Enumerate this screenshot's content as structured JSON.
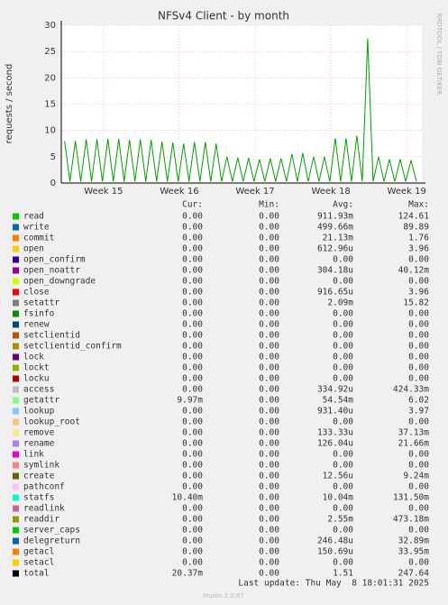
{
  "chart_data": {
    "type": "line",
    "title": "NFSv4 Client - by month",
    "ylabel": "requests / second",
    "watermark": "RRDTOOL / TOBI OETIKER",
    "xlim": [
      0,
      33.3
    ],
    "xticks": [
      {
        "value": 3.9,
        "label": "Week 15"
      },
      {
        "value": 10.9,
        "label": "Week 16"
      },
      {
        "value": 17.9,
        "label": "Week 17"
      },
      {
        "value": 24.9,
        "label": "Week 18"
      },
      {
        "value": 31.9,
        "label": "Week 19"
      }
    ],
    "ylim": [
      0,
      30
    ],
    "yticks": [
      0,
      5,
      10,
      15,
      20,
      25,
      30
    ],
    "grid": true,
    "series": [
      {
        "color": "#00a000",
        "x": [
          0.3,
          0.8,
          1.3,
          1.8,
          2.3,
          2.8,
          3.3,
          3.8,
          4.3,
          4.8,
          5.3,
          5.8,
          6.3,
          6.8,
          7.3,
          7.8,
          8.3,
          8.8,
          9.3,
          9.8,
          10.3,
          10.8,
          11.3,
          11.8,
          12.3,
          12.8,
          13.3,
          13.8,
          14.3,
          14.8,
          15.3,
          15.8,
          16.3,
          16.8,
          17.3,
          17.8,
          18.3,
          18.8,
          19.3,
          19.8,
          20.3,
          20.8,
          21.3,
          21.8,
          22.3,
          22.8,
          23.3,
          23.8,
          24.3,
          24.8,
          25.3,
          25.8,
          26.3,
          26.8,
          27.3,
          27.8,
          28.3,
          28.8,
          29.3,
          29.8,
          30.3,
          30.8,
          31.3,
          31.8,
          32.3,
          32.8
        ],
        "values": [
          8,
          0.3,
          8,
          0.3,
          8.3,
          0.3,
          8.3,
          0.3,
          8.4,
          0.3,
          8.4,
          0.3,
          8.2,
          0.3,
          8.3,
          0.3,
          8.2,
          0.3,
          7.9,
          0.3,
          7.7,
          0.3,
          7.5,
          0.3,
          7.8,
          0.3,
          7.8,
          0.3,
          7.5,
          0.3,
          5,
          0.3,
          4.8,
          0.3,
          4.8,
          0.3,
          4.5,
          0.3,
          4.7,
          0.3,
          4.7,
          0.3,
          5.5,
          0.3,
          5.7,
          0.3,
          5,
          0.3,
          5,
          0.3,
          8.5,
          0.3,
          8.5,
          0.3,
          9,
          0.3,
          27.5,
          0.3,
          5,
          0.3,
          4.5,
          0.3,
          4.5,
          0.3,
          4.3,
          0.3
        ]
      }
    ],
    "legend": {
      "columns": [
        "Cur:",
        "Min:",
        "Avg:",
        "Max:"
      ],
      "rows": [
        {
          "name": "read",
          "color": "#00cc00",
          "cur": "0.00",
          "min": "0.00",
          "avg": "911.93m",
          "max": "124.61"
        },
        {
          "name": "write",
          "color": "#0066b3",
          "cur": "0.00",
          "min": "0.00",
          "avg": "499.66m",
          "max": "89.89"
        },
        {
          "name": "commit",
          "color": "#ff8000",
          "cur": "0.00",
          "min": "0.00",
          "avg": "21.13m",
          "max": "1.76"
        },
        {
          "name": "open",
          "color": "#ffcc00",
          "cur": "0.00",
          "min": "0.00",
          "avg": "612.96u",
          "max": "3.96"
        },
        {
          "name": "open_confirm",
          "color": "#330099",
          "cur": "0.00",
          "min": "0.00",
          "avg": "0.00",
          "max": "0.00"
        },
        {
          "name": "open_noattr",
          "color": "#990099",
          "cur": "0.00",
          "min": "0.00",
          "avg": "304.18u",
          "max": "40.12m"
        },
        {
          "name": "open_downgrade",
          "color": "#ccff00",
          "cur": "0.00",
          "min": "0.00",
          "avg": "0.00",
          "max": "0.00"
        },
        {
          "name": "close",
          "color": "#ff0000",
          "cur": "0.00",
          "min": "0.00",
          "avg": "916.65u",
          "max": "3.96"
        },
        {
          "name": "setattr",
          "color": "#808080",
          "cur": "0.00",
          "min": "0.00",
          "avg": "2.09m",
          "max": "15.82"
        },
        {
          "name": "fsinfo",
          "color": "#008f00",
          "cur": "0.00",
          "min": "0.00",
          "avg": "0.00",
          "max": "0.00"
        },
        {
          "name": "renew",
          "color": "#00487d",
          "cur": "0.00",
          "min": "0.00",
          "avg": "0.00",
          "max": "0.00"
        },
        {
          "name": "setclientid",
          "color": "#b35a00",
          "cur": "0.00",
          "min": "0.00",
          "avg": "0.00",
          "max": "0.00"
        },
        {
          "name": "setclientid_confirm",
          "color": "#b38f00",
          "cur": "0.00",
          "min": "0.00",
          "avg": "0.00",
          "max": "0.00"
        },
        {
          "name": "lock",
          "color": "#6b006b",
          "cur": "0.00",
          "min": "0.00",
          "avg": "0.00",
          "max": "0.00"
        },
        {
          "name": "lockt",
          "color": "#8fb300",
          "cur": "0.00",
          "min": "0.00",
          "avg": "0.00",
          "max": "0.00"
        },
        {
          "name": "locku",
          "color": "#b30000",
          "cur": "0.00",
          "min": "0.00",
          "avg": "0.00",
          "max": "0.00"
        },
        {
          "name": "access",
          "color": "#bebebe",
          "cur": "0.00",
          "min": "0.00",
          "avg": "334.92u",
          "max": "424.33m"
        },
        {
          "name": "getattr",
          "color": "#80ff80",
          "cur": "9.97m",
          "min": "0.00",
          "avg": "54.54m",
          "max": "6.02"
        },
        {
          "name": "lookup",
          "color": "#80c9ff",
          "cur": "0.00",
          "min": "0.00",
          "avg": "931.40u",
          "max": "3.97"
        },
        {
          "name": "lookup_root",
          "color": "#ffc080",
          "cur": "0.00",
          "min": "0.00",
          "avg": "0.00",
          "max": "0.00"
        },
        {
          "name": "remove",
          "color": "#ffe680",
          "cur": "0.00",
          "min": "0.00",
          "avg": "133.33u",
          "max": "37.13m"
        },
        {
          "name": "rename",
          "color": "#aa80ff",
          "cur": "0.00",
          "min": "0.00",
          "avg": "126.04u",
          "max": "21.66m"
        },
        {
          "name": "link",
          "color": "#ee00cc",
          "cur": "0.00",
          "min": "0.00",
          "avg": "0.00",
          "max": "0.00"
        },
        {
          "name": "symlink",
          "color": "#ff8080",
          "cur": "0.00",
          "min": "0.00",
          "avg": "0.00",
          "max": "0.00"
        },
        {
          "name": "create",
          "color": "#666600",
          "cur": "0.00",
          "min": "0.00",
          "avg": "12.56u",
          "max": "9.24m"
        },
        {
          "name": "pathconf",
          "color": "#ffbfff",
          "cur": "0.00",
          "min": "0.00",
          "avg": "0.00",
          "max": "0.00"
        },
        {
          "name": "statfs",
          "color": "#00ffcc",
          "cur": "10.40m",
          "min": "0.00",
          "avg": "10.04m",
          "max": "131.50m"
        },
        {
          "name": "readlink",
          "color": "#cc6699",
          "cur": "0.00",
          "min": "0.00",
          "avg": "0.00",
          "max": "0.00"
        },
        {
          "name": "readdir",
          "color": "#999900",
          "cur": "0.00",
          "min": "0.00",
          "avg": "2.55m",
          "max": "473.18m"
        },
        {
          "name": "server_caps",
          "color": "#00cc00",
          "cur": "0.00",
          "min": "0.00",
          "avg": "0.00",
          "max": "0.00"
        },
        {
          "name": "delegreturn",
          "color": "#0066b3",
          "cur": "0.00",
          "min": "0.00",
          "avg": "246.48u",
          "max": "32.89m"
        },
        {
          "name": "getacl",
          "color": "#ff8000",
          "cur": "0.00",
          "min": "0.00",
          "avg": "150.69u",
          "max": "33.95m"
        },
        {
          "name": "setacl",
          "color": "#ffcc00",
          "cur": "0.00",
          "min": "0.00",
          "avg": "0.00",
          "max": "0.00"
        },
        {
          "name": "total",
          "color": "#000000",
          "cur": "20.37m",
          "min": "0.00",
          "avg": "1.51",
          "max": "247.64"
        }
      ]
    },
    "last_update": "Last update: Thu May  8 18:01:31 2025",
    "footer": "Munin 2.0.67"
  }
}
